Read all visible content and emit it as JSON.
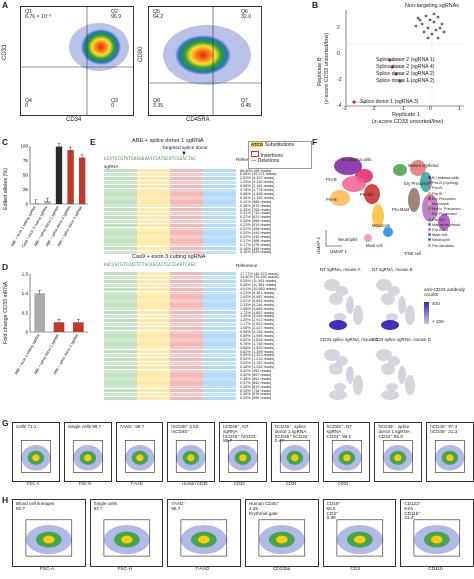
{
  "panel_letters": [
    "A",
    "B",
    "C",
    "D",
    "E",
    "F",
    "G",
    "H"
  ],
  "panelA": {
    "plot1": {
      "y_label": "CD33",
      "x_label": "CD34",
      "quadrants": [
        {
          "name": "Q1",
          "value": "6.76 × 10⁻³"
        },
        {
          "name": "Q2",
          "value": "96.9"
        },
        {
          "name": "Q3",
          "value": "0"
        },
        {
          "name": "Q4",
          "value": "0"
        }
      ]
    },
    "plot2": {
      "y_label": "CD90",
      "x_label": "CD45RA",
      "quadrants": [
        {
          "name": "Q5",
          "value": "64.2"
        },
        {
          "name": "Q6",
          "value": "32.0"
        },
        {
          "name": "Q7",
          "value": "0.45"
        },
        {
          "name": "Q8",
          "value": "3.35"
        }
      ]
    }
  },
  "panelB": {
    "y_label_1": "Replicate B",
    "y_label_2": "(z-score CD33 unsorted/low)",
    "x_label_1": "Replicate 1",
    "x_label_2": "(z-score CD33 unsorted/low)",
    "legend": "Non-targeting sgRNAs",
    "annotations": [
      "Splice donor 2 (sgRNA 1)",
      "Splice donor 2 (sgRNA 4)",
      "Splice donor 2 (sgRNA 2)",
      "Splice donor 1 (sgRNA 2)",
      "Splice donor 1 (sgRNA 3)"
    ],
    "x_ticks": [
      "-3",
      "-2",
      "-1",
      "0",
      "1"
    ],
    "y_ticks": [
      "2",
      "0",
      "-2",
      "-4"
    ]
  },
  "panelC": {
    "y_label": "Edited alleles (%)",
    "y_ticks": [
      "100",
      "75",
      "50",
      "25",
      "0"
    ],
    "chart_data": {
      "type": "bar",
      "categories": [
        "ABE + exon 1 editing sgRNA",
        "Cas9 + exon 3 cutting sgRNA",
        "ABE + splice donor 1 sgRNA",
        "ABE + splice donor 2 sgRNA",
        "ABE + splice donor 3 sgRNA"
      ],
      "values": [
        2,
        5,
        99,
        93,
        80
      ],
      "ylim": [
        0,
        100
      ],
      "colors": [
        "#aaaaaa",
        "#aaaaaa",
        "#2a2a2a",
        "#c0392b",
        "#c0392b"
      ]
    }
  },
  "panelD": {
    "y_label": "Fold change CD33 mRNA",
    "y_ticks": [
      "1.5",
      "1.0",
      "0.5",
      "0"
    ],
    "chart_data": {
      "type": "bar",
      "categories": [
        "ABE + exon 1 editing sgRNA",
        "ABE + splice donor 1 sgRNA",
        "ABE + splice donor 2 sgRNA"
      ],
      "values": [
        1.0,
        0.25,
        0.25
      ],
      "ylim": [
        0,
        1.5
      ],
      "colors": [
        "#aaaaaa",
        "#c0392b",
        "#c0392b"
      ]
    }
  },
  "panelE": {
    "header1": "ABE + splice donor 1 sgRNA",
    "header2": "Cas9 + exon 3 cutting sgRNA",
    "targeted_label": "Targeted splice donor",
    "reference_label": "Reference",
    "sgrna_label": "sgRNA",
    "legend": [
      "Substitutions",
      "Insertions",
      "Deletions"
    ],
    "legend_key": "ATCG",
    "seq_ref1": "GCATCCGTATGAGGGAATCCATGCATCGGACTAC",
    "seq_ref2": "AACCATGTCCACTCTGCAGCACTGCCGAATCAGC",
    "rows1": [
      "85.80% (56 reads)",
      "6.56% (19,071 reads)",
      "2.53% (4,107 reads)",
      "1.33% (3,140 reads)",
      "0.98% (2,181 reads)",
      "0.78% (1,778 reads)",
      "0.68% (1,495 reads)",
      "0.44% (1,182 reads)",
      "0.41% (983 reads)",
      "0.38% (870 reads)",
      "0.35% (769 reads)",
      "0.31% (712 reads)",
      "0.27% (621 reads)",
      "0.26% (566 reads)",
      "0.23% (519 reads)",
      "0.22% (498 reads)",
      "0.20% (449 reads)",
      "0.20% (432 reads)",
      "0.17% (388 reads)",
      "0.17% (376 reads)",
      "0.16% (349 reads)",
      "0.15% (329 reads)"
    ],
    "rows2": [
      "17.77% (40,973 reads)",
      "14.80% (31,402 reads)",
      "5.25% (11,903 reads)",
      "5.08% (11,381 reads)",
      "4.91% (10,983 reads)",
      "4.21% (9,461 reads)",
      "2.93% (6,587 reads)",
      "2.51% (5,642 reads)",
      "2.33% (5,246 reads)",
      "2.08% (4,689 reads)",
      "1.72% (3,857 reads)",
      "1.45% (3,264 reads)",
      "1.29% (2,912 reads)",
      "1.17% (2,624 reads)",
      "1.08% (2,427 reads)",
      "0.95% (2,134 reads)",
      "0.89% (1,994 reads)",
      "0.81% (1,834 reads)",
      "0.78% (1,748 reads)",
      "0.66% (1,492 reads)",
      "0.62% (1,399 reads)",
      "0.59% (1,323 reads)",
      "0.54% (1,216 reads)",
      "0.53% (1,187 reads)",
      "0.46% (1,032 reads)",
      "0.42% (952 reads)",
      "0.40% (897 reads)",
      "0.38% (861 reads)",
      "0.37% (842 reads)",
      "0.36% (819 reads)",
      "0.33% (734 reads)",
      "0.30% (676 reads)",
      "0.29% (650 reads)"
    ]
  },
  "panelF": {
    "umap_x": "UMAP 1",
    "umap_y": "UMAP 2",
    "legend": [
      "B / plasma cells",
      "Pro-B (Cycling)",
      "Pro-B",
      "Pre-B",
      "Ery Precursor",
      "Monocyte",
      "Mono. Precursor",
      "Ery Progenitor",
      "Pre-DC",
      "Mature erythroid",
      "Pro-Mast",
      "Mast cell",
      "Neutrophil",
      "Pre-dendritic"
    ],
    "legend_colors": [
      "#7b1fa2",
      "#e91e63",
      "#f06292",
      "#ffb74d",
      "#c62828",
      "#fbc02d",
      "#43a047",
      "#e57373",
      "#26a69a",
      "#8d6e63",
      "#ba68c8",
      "#ab47bc",
      "#1e88e5",
      "#f48fb1"
    ],
    "cluster_labels": [
      "B / plasma cells",
      "Mature erythroid",
      "Ery Precursor",
      "Pro-B",
      "Pre-B",
      "Monocyte",
      "Pro-Mast",
      "Mast cell",
      "Neutrophil",
      "Pre-DC",
      "T/NK cell"
    ],
    "feature_titles": [
      "NT sgRNA, mouse A",
      "NT sgRNA, mouse B",
      "CD33 splice sgRNA, mouse C",
      "CD33 splice sgRNA, mouse D"
    ],
    "colorbar_title": "anti-CD33 antibody counts",
    "colorbar_ticks": [
      "400",
      "< 200"
    ]
  },
  "panelG": {
    "gates": [
      "Cells 71.1",
      "Single cells 98.7",
      "7AAD⁻ 99.7",
      "hCD45⁺ 2.83",
      "mCD45⁺",
      "hCD45⁺ hCD33⁻ 96.7",
      "hCD45⁺ hCD33⁻ 0.47",
      "CD34⁺ 96.1",
      "CD34⁺ 85.9",
      "CD34⁺ 97.8",
      "hCD45⁺ 97.3",
      "hCD45⁺ 21.3"
    ],
    "titles": [
      "hCD45⁺, NT sgRNA",
      "hCD45⁺, splice donor 1 sgRNA",
      "hCD45⁺, NT sgRNA",
      "hCD45⁺, splice donor 1 sgRNA"
    ],
    "axes": [
      "FSC-A",
      "FSC-H",
      "7-AAD",
      "Human CD45",
      "CD33",
      "CD34",
      "CD33"
    ],
    "yaxes": [
      "SSC-A",
      "FSC-A",
      "SSC-A",
      "Mouse CD45",
      "CD34",
      "CD33"
    ]
  },
  "panelH": {
    "gates": [
      {
        "name": "Blood cell lineages",
        "value": "82.7"
      },
      {
        "name": "Single cells",
        "value": "94.7"
      },
      {
        "name": "7AAD⁻",
        "value": "99.7"
      },
      {
        "name": "Human CD45⁺",
        "value": "4.25"
      },
      {
        "name": "Erythroid gate",
        "value": ""
      },
      {
        "name": "CD19⁺",
        "value": "56.5"
      },
      {
        "name": "CD3⁺",
        "value": "0.99"
      },
      {
        "name": "CD123⁺",
        "value": "8.61"
      },
      {
        "name": "CD11b⁺",
        "value": "21.4"
      }
    ],
    "xaxes": [
      "FSC-A",
      "FSC-H",
      "7-AAD",
      "CD235a",
      "CD3",
      "CD11b"
    ],
    "yaxes": [
      "SSC-A",
      "FSC-A",
      "SSC-H",
      "Human CD45",
      "CD19",
      "CD123"
    ]
  }
}
